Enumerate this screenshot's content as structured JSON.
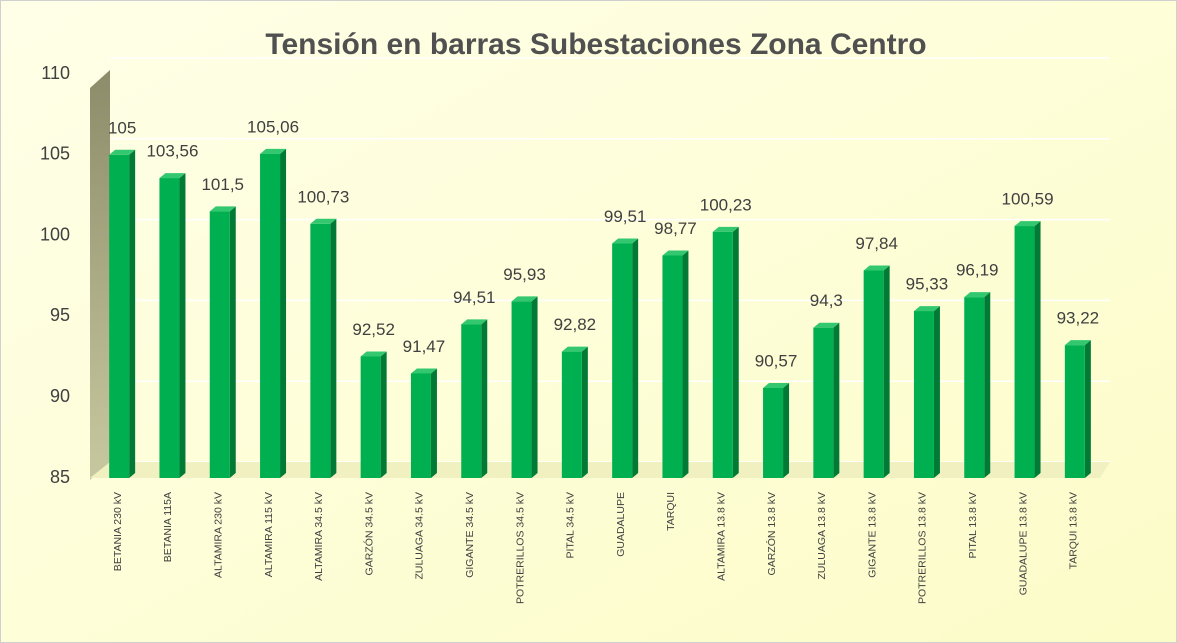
{
  "chart_data": {
    "type": "bar",
    "title": "Tensión en barras Subestaciones Zona Centro",
    "categories": [
      "BETANIA 230 kV",
      "BETANIA 115A",
      "ALTAMIRA 230 kV",
      "ALTAMIRA 115 kV",
      "ALTAMIRA 34.5 kV",
      "GARZÓN 34.5 kV",
      "ZULUAGA 34.5 kV",
      "GIGANTE 34.5 kV",
      "POTRERILLOS 34.5 kV",
      "PITAL 34.5 kV",
      "GUADALUPE",
      "TARQUI",
      "ALTAMIRA 13.8 kV",
      "GARZÓN 13.8 kV",
      "ZULUAGA 13.8 kV",
      "GIGANTE 13.8 kV",
      "POTRERILLOS 13.8 kV",
      "PITAL 13.8 kV",
      "GUADALUPE 13.8 kV",
      "TARQUI 13.8 kV"
    ],
    "values": [
      105,
      103.56,
      101.5,
      105.06,
      100.73,
      92.52,
      91.47,
      94.51,
      95.93,
      92.82,
      99.51,
      98.77,
      100.23,
      90.57,
      94.3,
      97.84,
      95.33,
      96.19,
      100.59,
      93.22
    ],
    "value_labels": [
      "105",
      "103,56",
      "101,5",
      "105,06",
      "100,73",
      "92,52",
      "91,47",
      "94,51",
      "95,93",
      "92,82",
      "99,51",
      "98,77",
      "100,23",
      "90,57",
      "94,3",
      "97,84",
      "95,33",
      "96,19",
      "100,59",
      "93,22"
    ],
    "color": "#00b050",
    "ylim": [
      85,
      110
    ],
    "yticks": [
      85,
      90,
      95,
      100,
      105,
      110
    ],
    "grid": true
  }
}
